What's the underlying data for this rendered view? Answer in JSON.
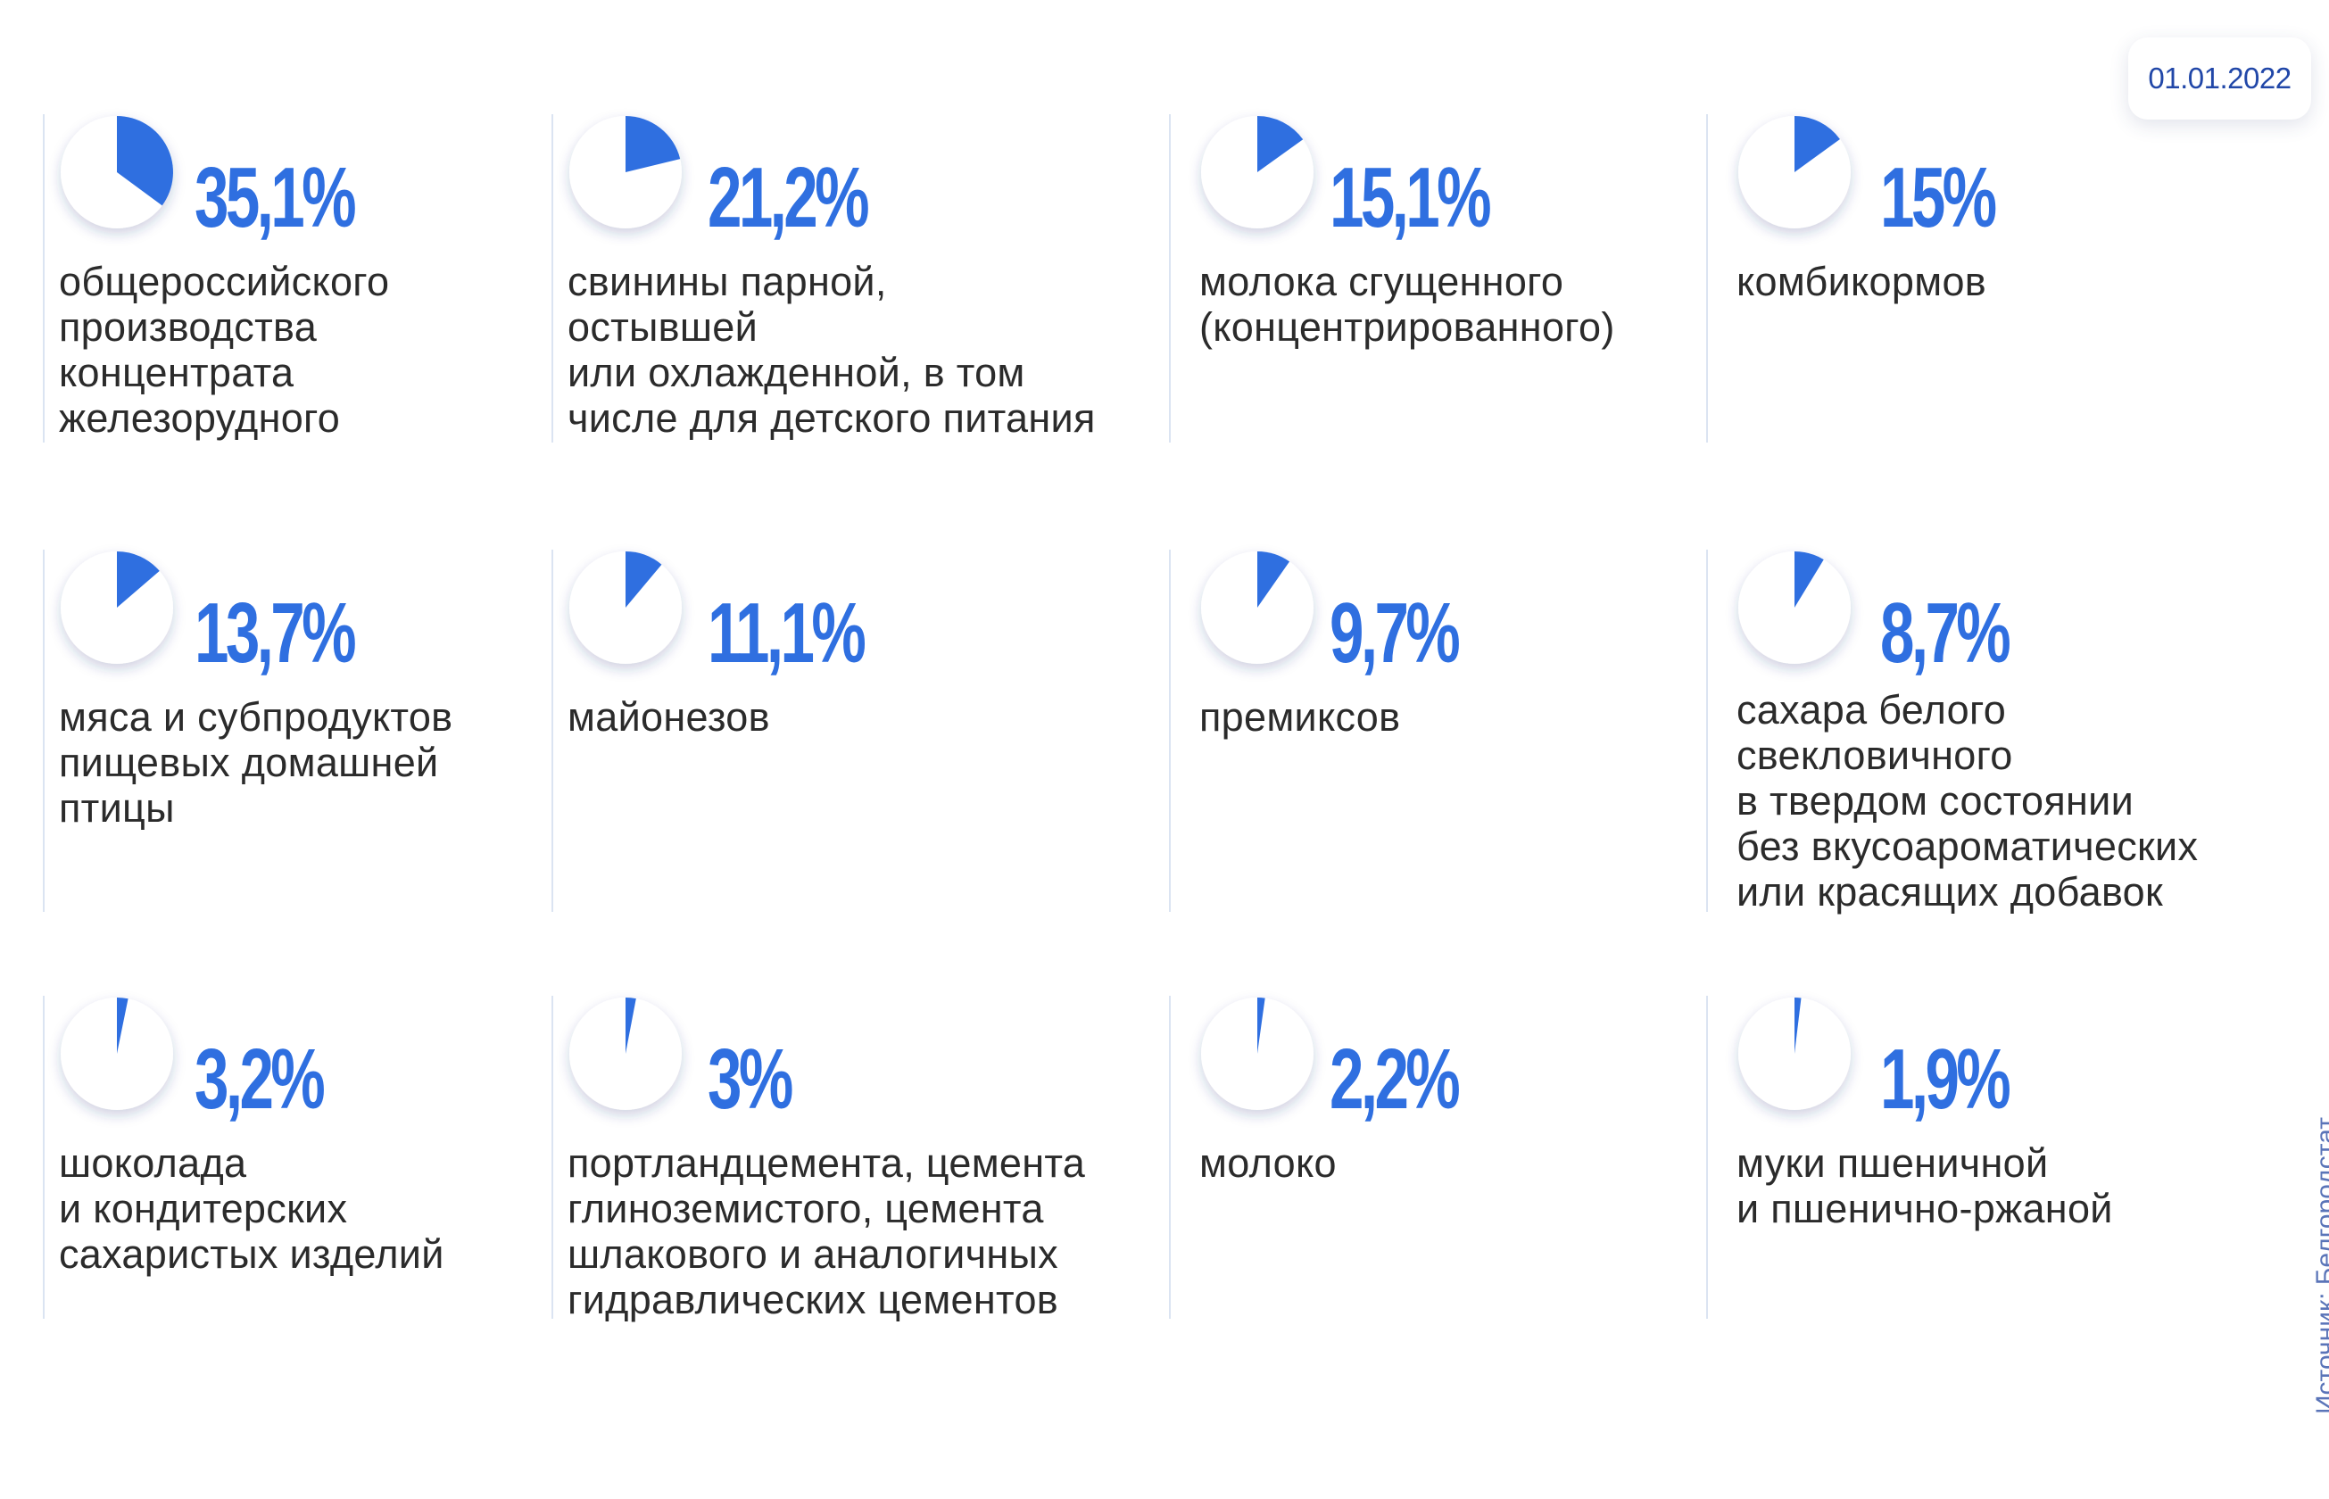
{
  "date": "01.01.2022",
  "source": "Источник: Белгородстат",
  "accent_color": "#2f6fe0",
  "chart_data": {
    "type": "pie",
    "items": [
      {
        "value": 35.1,
        "value_label": "35,1%",
        "label": "общероссийского\nпроизводства\nконцентрата\nжелезорудного"
      },
      {
        "value": 21.2,
        "value_label": "21,2%",
        "label": "свинины парной,\nостывшей\nили охлажденной, в том\nчисле для детского питания"
      },
      {
        "value": 15.1,
        "value_label": "15,1%",
        "label": "молока сгущенного\n(концентрированного)"
      },
      {
        "value": 15,
        "value_label": "15%",
        "label": "комбикормов"
      },
      {
        "value": 13.7,
        "value_label": "13,7%",
        "label": "мяса и субпродуктов\nпищевых домашней\nптицы"
      },
      {
        "value": 11.1,
        "value_label": "11,1%",
        "label": "майонезов"
      },
      {
        "value": 9.7,
        "value_label": "9,7%",
        "label": "премиксов"
      },
      {
        "value": 8.7,
        "value_label": "8,7%",
        "label": "сахара белого\nсвекловичного\nв твердом состоянии\nбез вкусоароматических\nили красящих добавок"
      },
      {
        "value": 3.2,
        "value_label": "3,2%",
        "label": "шоколада\nи кондитерских\nсахаристых изделий"
      },
      {
        "value": 3,
        "value_label": "3%",
        "label": "портландцемента, цемента\nглиноземистого, цемента\nшлакового и аналогичных\nгидравлических цементов"
      },
      {
        "value": 2.2,
        "value_label": "2,2%",
        "label": "молоко"
      },
      {
        "value": 1.9,
        "value_label": "1,9%",
        "label": "муки пшеничной\nи пшенично-ржаной"
      }
    ]
  }
}
